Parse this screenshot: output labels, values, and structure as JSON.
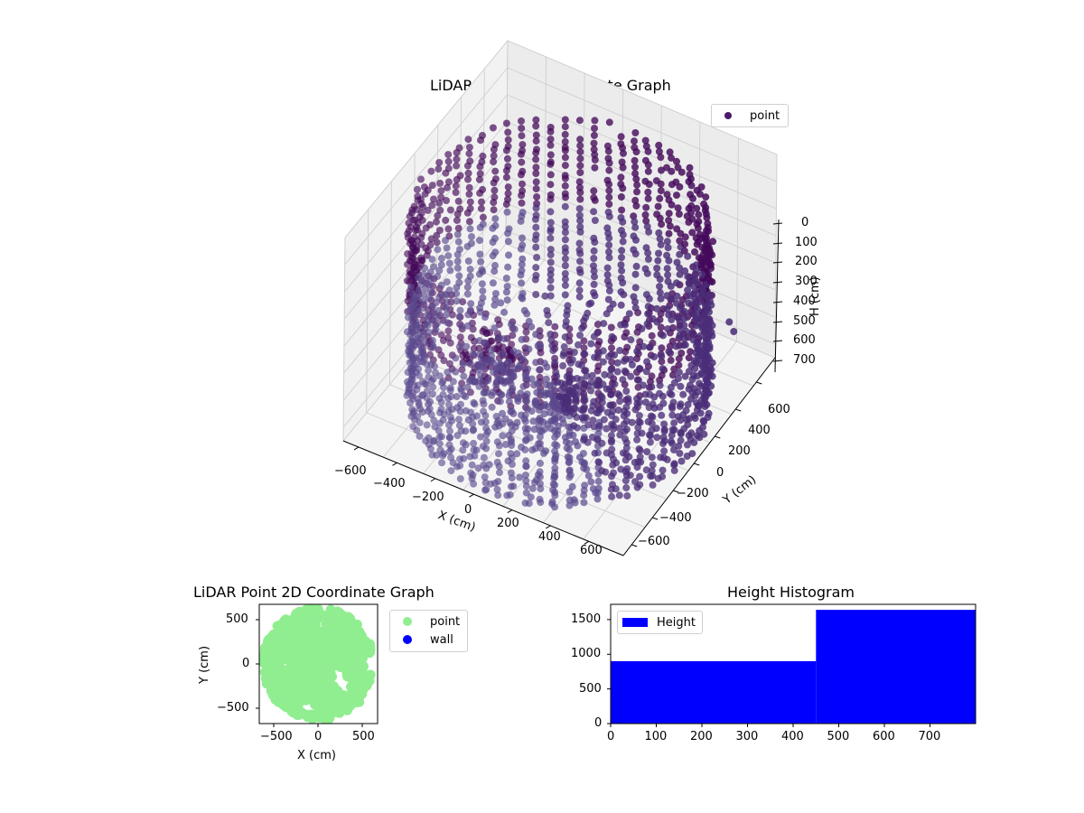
{
  "chart_data": [
    {
      "type": "scatter",
      "subtype": "scatter3d",
      "title": "LiDAR Point 3D Coordinate Graph",
      "xlabel": "X (cm)",
      "ylabel": "Y (cm)",
      "zlabel": "H (cm)",
      "x_ticks": [
        "−600",
        "−400",
        "−200",
        "0",
        "200",
        "400",
        "600"
      ],
      "y_ticks": [
        "600",
        "400",
        "200",
        "0",
        "−200",
        "−400",
        "−600"
      ],
      "z_ticks": [
        "0",
        "100",
        "200",
        "300",
        "400",
        "500",
        "600",
        "700"
      ],
      "xlim": [
        -650,
        650
      ],
      "ylim": [
        -650,
        650
      ],
      "zlim": [
        0,
        750
      ],
      "z_inverted": true,
      "legend": [
        {
          "label": "point",
          "color": "#4b1a6b"
        }
      ],
      "legend_position": "upper right",
      "grid": true,
      "colormap": "viridis-like (dark purple to blue-purple)",
      "description": "Cylindrical wall of points, radius ~600 cm, heights 0–750 cm in 100 cm rings, with radial floor spokes converging near center and a dense cluster near top-back."
    },
    {
      "type": "scatter",
      "title": "LiDAR Point 2D Coordinate Graph",
      "xlabel": "X (cm)",
      "ylabel": "Y (cm)",
      "x_ticks": [
        "−500",
        "0",
        "500"
      ],
      "y_ticks": [
        "500",
        "0",
        "−500"
      ],
      "xlim": [
        -680,
        680
      ],
      "ylim": [
        -680,
        680
      ],
      "legend": [
        {
          "label": "point",
          "color": "#90ee90"
        },
        {
          "label": "wall",
          "color": "#0000ff"
        }
      ],
      "legend_position": "outside right"
    },
    {
      "type": "bar",
      "subtype": "histogram",
      "title": "Height Histogram",
      "xlabel": "",
      "ylabel": "",
      "bins": [
        [
          0,
          450
        ],
        [
          450,
          800
        ]
      ],
      "values": [
        900,
        1640
      ],
      "x_ticks": [
        "0",
        "100",
        "200",
        "300",
        "400",
        "500",
        "600",
        "700"
      ],
      "y_ticks": [
        "0",
        "500",
        "1000",
        "1500"
      ],
      "xlim": [
        0,
        800
      ],
      "ylim": [
        0,
        1720
      ],
      "legend": [
        {
          "label": "Height",
          "color": "#0000ff"
        }
      ],
      "legend_position": "upper left",
      "color": "#0000ff"
    }
  ],
  "plot3d": {
    "title": "LiDAR Point 3D Coordinate Graph",
    "legend_label": "point",
    "xlabel": "X (cm)",
    "ylabel": "Y (cm)",
    "zlabel": "H (cm)",
    "x_ticks": [
      "−600",
      "−400",
      "−200",
      "0",
      "200",
      "400",
      "600"
    ],
    "y_ticks": [
      "600",
      "400",
      "200",
      "0",
      "−200",
      "−400",
      "−600"
    ],
    "z_ticks": [
      "0",
      "100",
      "200",
      "300",
      "400",
      "500",
      "600",
      "700"
    ]
  },
  "plot2d": {
    "title": "LiDAR Point 2D Coordinate Graph",
    "xlabel": "X (cm)",
    "ylabel": "Y (cm)",
    "x_ticks": [
      "−500",
      "0",
      "500"
    ],
    "y_ticks": [
      "500",
      "0",
      "−500"
    ],
    "legend": [
      "point",
      "wall"
    ]
  },
  "hist": {
    "title": "Height Histogram",
    "legend_label": "Height",
    "x_ticks": [
      "0",
      "100",
      "200",
      "300",
      "400",
      "500",
      "600",
      "700"
    ],
    "y_ticks": [
      "0",
      "500",
      "1000",
      "1500"
    ]
  },
  "colors": {
    "point3d_dark": "#440a5a",
    "point3d_mid": "#4a2d78",
    "point3d_light": "#5b4a8e",
    "point2d": "#90ee90",
    "wall": "#0000ff",
    "hist_bar": "#0000ff",
    "pane": "#f2f2f2",
    "grid": "#cccccc"
  }
}
